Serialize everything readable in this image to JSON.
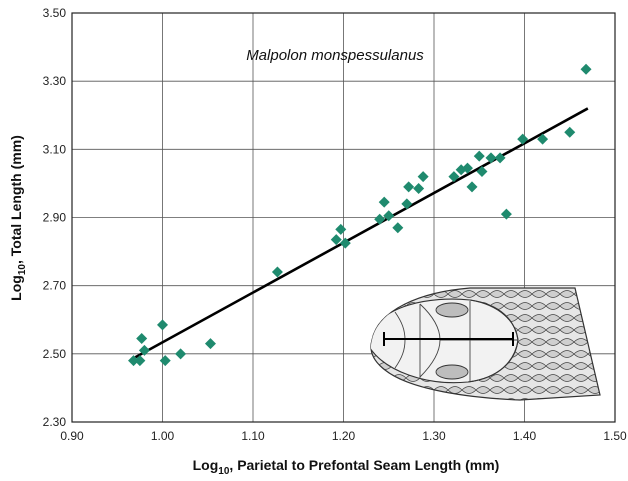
{
  "chart_data": {
    "type": "scatter",
    "title": "Malpolon monspessulanus",
    "xlabel": "Parietal to Prefontal Seam Length (mm)",
    "xlabel_prefix": "Log",
    "xlabel_sub": "10",
    "ylabel": "Total Length (mm)",
    "ylabel_prefix": "Log",
    "ylabel_sub": "10",
    "xlim": [
      0.9,
      1.5
    ],
    "ylim": [
      2.3,
      3.5
    ],
    "xticks": [
      0.9,
      1.0,
      1.1,
      1.2,
      1.3,
      1.4,
      1.5
    ],
    "yticks": [
      2.3,
      2.5,
      2.7,
      2.9,
      3.1,
      3.3,
      3.5
    ],
    "xtick_labels": [
      "0.90",
      "1.00",
      "1.10",
      "1.20",
      "1.30",
      "1.40",
      "1.50"
    ],
    "ytick_labels": [
      "2.30",
      "2.50",
      "2.70",
      "2.90",
      "3.10",
      "3.30",
      "3.50"
    ],
    "grid": true,
    "marker": "diamond",
    "point_color": "#1f8a6e",
    "fit_line": {
      "x": [
        0.97,
        1.47
      ],
      "y": [
        2.49,
        3.22
      ]
    },
    "points": [
      {
        "x": 0.968,
        "y": 2.48
      },
      {
        "x": 0.975,
        "y": 2.48
      },
      {
        "x": 0.977,
        "y": 2.545
      },
      {
        "x": 0.98,
        "y": 2.51
      },
      {
        "x": 1.0,
        "y": 2.585
      },
      {
        "x": 1.003,
        "y": 2.48
      },
      {
        "x": 1.02,
        "y": 2.5
      },
      {
        "x": 1.053,
        "y": 2.53
      },
      {
        "x": 1.127,
        "y": 2.74
      },
      {
        "x": 1.192,
        "y": 2.835
      },
      {
        "x": 1.197,
        "y": 2.865
      },
      {
        "x": 1.202,
        "y": 2.825
      },
      {
        "x": 1.24,
        "y": 2.895
      },
      {
        "x": 1.245,
        "y": 2.945
      },
      {
        "x": 1.25,
        "y": 2.905
      },
      {
        "x": 1.26,
        "y": 2.87
      },
      {
        "x": 1.27,
        "y": 2.94
      },
      {
        "x": 1.272,
        "y": 2.99
      },
      {
        "x": 1.283,
        "y": 2.985
      },
      {
        "x": 1.288,
        "y": 3.02
      },
      {
        "x": 1.322,
        "y": 3.02
      },
      {
        "x": 1.33,
        "y": 3.04
      },
      {
        "x": 1.337,
        "y": 3.045
      },
      {
        "x": 1.342,
        "y": 2.99
      },
      {
        "x": 1.35,
        "y": 3.08
      },
      {
        "x": 1.353,
        "y": 3.035
      },
      {
        "x": 1.363,
        "y": 3.075
      },
      {
        "x": 1.373,
        "y": 3.075
      },
      {
        "x": 1.38,
        "y": 2.91
      },
      {
        "x": 1.398,
        "y": 3.13
      },
      {
        "x": 1.42,
        "y": 3.13
      },
      {
        "x": 1.45,
        "y": 3.15
      },
      {
        "x": 1.468,
        "y": 3.335
      }
    ],
    "inset_image": "snake-head-illustration"
  }
}
